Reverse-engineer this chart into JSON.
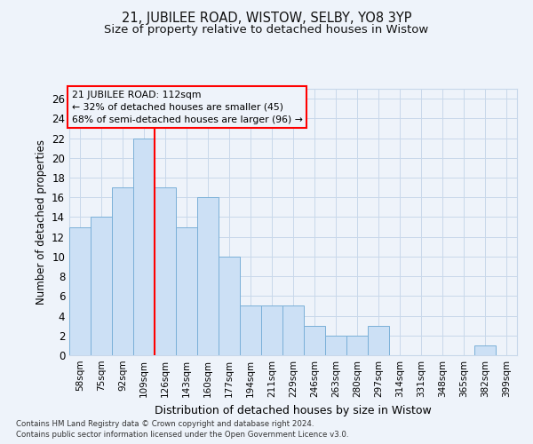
{
  "title": "21, JUBILEE ROAD, WISTOW, SELBY, YO8 3YP",
  "subtitle": "Size of property relative to detached houses in Wistow",
  "xlabel": "Distribution of detached houses by size in Wistow",
  "ylabel": "Number of detached properties",
  "categories": [
    "58sqm",
    "75sqm",
    "92sqm",
    "109sqm",
    "126sqm",
    "143sqm",
    "160sqm",
    "177sqm",
    "194sqm",
    "211sqm",
    "229sqm",
    "246sqm",
    "263sqm",
    "280sqm",
    "297sqm",
    "314sqm",
    "331sqm",
    "348sqm",
    "365sqm",
    "382sqm",
    "399sqm"
  ],
  "values": [
    13,
    14,
    17,
    22,
    17,
    13,
    16,
    10,
    5,
    5,
    5,
    3,
    2,
    2,
    3,
    0,
    0,
    0,
    0,
    1,
    0
  ],
  "bar_color": "#cce0f5",
  "bar_edge_color": "#7ab0d8",
  "red_line_x": 3,
  "ylim": [
    0,
    27
  ],
  "yticks": [
    0,
    2,
    4,
    6,
    8,
    10,
    12,
    14,
    16,
    18,
    20,
    22,
    24,
    26
  ],
  "annotation_title": "21 JUBILEE ROAD: 112sqm",
  "annotation_line1": "← 32% of detached houses are smaller (45)",
  "annotation_line2": "68% of semi-detached houses are larger (96) →",
  "footer1": "Contains HM Land Registry data © Crown copyright and database right 2024.",
  "footer2": "Contains public sector information licensed under the Open Government Licence v3.0.",
  "bg_color": "#eef3fa",
  "grid_color": "#c8d8ea",
  "title_fontsize": 10.5,
  "subtitle_fontsize": 9.5
}
